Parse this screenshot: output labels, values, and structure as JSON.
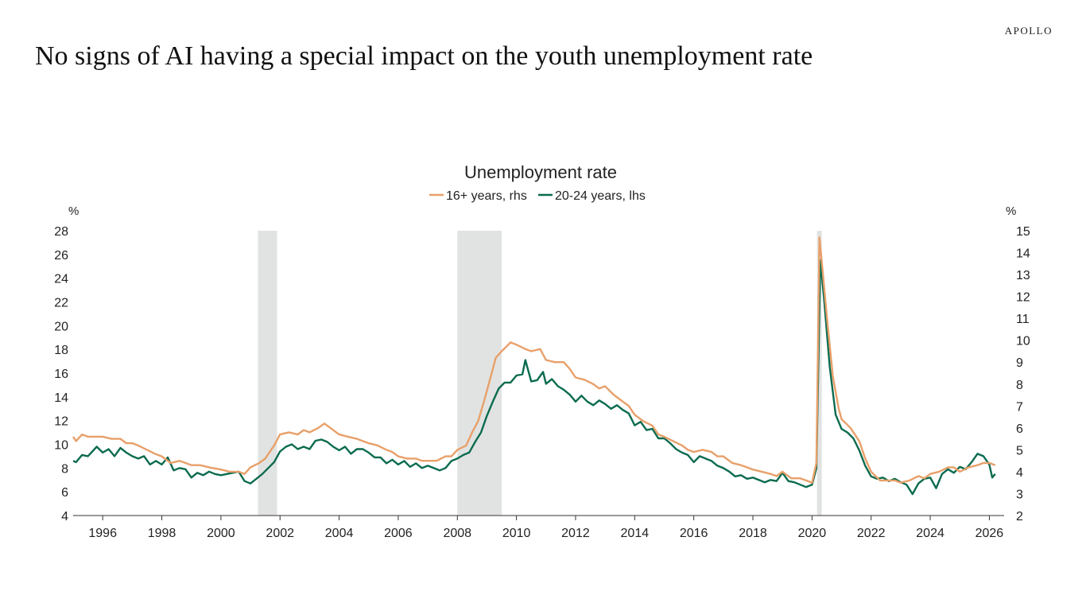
{
  "header": {
    "brand": "APOLLO",
    "headline": "No signs of AI having a special impact on the youth unemployment rate"
  },
  "chart_data": {
    "type": "line",
    "title": "Unemployment rate",
    "left_axis": {
      "unit": "%",
      "ylim": [
        4,
        28
      ],
      "ticks": [
        4,
        6,
        8,
        10,
        12,
        14,
        16,
        18,
        20,
        22,
        24,
        26,
        28
      ]
    },
    "right_axis": {
      "unit": "%",
      "ylim": [
        2,
        15
      ],
      "ticks": [
        2,
        3,
        4,
        5,
        6,
        7,
        8,
        9,
        10,
        11,
        12,
        13,
        14,
        15
      ]
    },
    "x_axis": {
      "xlim": [
        1995.0,
        2026.5
      ],
      "ticks": [
        1996,
        1998,
        2000,
        2002,
        2004,
        2006,
        2008,
        2010,
        2012,
        2014,
        2016,
        2018,
        2020,
        2022,
        2024,
        2026
      ]
    },
    "legend_position": "top",
    "grid": false,
    "recessions": [
      {
        "start": 2001.25,
        "end": 2001.9
      },
      {
        "start": 2008.0,
        "end": 2009.5
      },
      {
        "start": 2020.17,
        "end": 2020.33
      }
    ],
    "series": [
      {
        "name": "16+ years, rhs",
        "axis": "right",
        "color": "#E8A06A",
        "points": [
          [
            1995.0,
            5.6
          ],
          [
            1995.1,
            5.4
          ],
          [
            1995.3,
            5.7
          ],
          [
            1995.5,
            5.6
          ],
          [
            1995.8,
            5.6
          ],
          [
            1996.0,
            5.6
          ],
          [
            1996.3,
            5.5
          ],
          [
            1996.6,
            5.5
          ],
          [
            1996.8,
            5.3
          ],
          [
            1997.0,
            5.3
          ],
          [
            1997.2,
            5.2
          ],
          [
            1997.5,
            5.0
          ],
          [
            1997.8,
            4.8
          ],
          [
            1998.0,
            4.7
          ],
          [
            1998.3,
            4.4
          ],
          [
            1998.6,
            4.5
          ],
          [
            1998.8,
            4.4
          ],
          [
            1999.0,
            4.3
          ],
          [
            1999.3,
            4.3
          ],
          [
            1999.6,
            4.2
          ],
          [
            2000.0,
            4.1
          ],
          [
            2000.3,
            4.0
          ],
          [
            2000.6,
            4.0
          ],
          [
            2000.8,
            3.9
          ],
          [
            2001.0,
            4.2
          ],
          [
            2001.3,
            4.4
          ],
          [
            2001.5,
            4.6
          ],
          [
            2001.8,
            5.2
          ],
          [
            2002.0,
            5.7
          ],
          [
            2002.3,
            5.8
          ],
          [
            2002.6,
            5.7
          ],
          [
            2002.8,
            5.9
          ],
          [
            2003.0,
            5.8
          ],
          [
            2003.3,
            6.0
          ],
          [
            2003.5,
            6.2
          ],
          [
            2003.8,
            5.9
          ],
          [
            2004.0,
            5.7
          ],
          [
            2004.3,
            5.6
          ],
          [
            2004.6,
            5.5
          ],
          [
            2004.8,
            5.4
          ],
          [
            2005.0,
            5.3
          ],
          [
            2005.3,
            5.2
          ],
          [
            2005.6,
            5.0
          ],
          [
            2005.8,
            4.9
          ],
          [
            2006.0,
            4.7
          ],
          [
            2006.3,
            4.6
          ],
          [
            2006.6,
            4.6
          ],
          [
            2006.8,
            4.5
          ],
          [
            2007.0,
            4.5
          ],
          [
            2007.3,
            4.5
          ],
          [
            2007.6,
            4.7
          ],
          [
            2007.8,
            4.7
          ],
          [
            2008.0,
            5.0
          ],
          [
            2008.3,
            5.2
          ],
          [
            2008.5,
            5.8
          ],
          [
            2008.7,
            6.3
          ],
          [
            2008.9,
            7.2
          ],
          [
            2009.1,
            8.2
          ],
          [
            2009.3,
            9.2
          ],
          [
            2009.5,
            9.5
          ],
          [
            2009.8,
            9.9
          ],
          [
            2010.0,
            9.8
          ],
          [
            2010.3,
            9.6
          ],
          [
            2010.5,
            9.5
          ],
          [
            2010.8,
            9.6
          ],
          [
            2011.0,
            9.1
          ],
          [
            2011.3,
            9.0
          ],
          [
            2011.6,
            9.0
          ],
          [
            2011.8,
            8.7
          ],
          [
            2012.0,
            8.3
          ],
          [
            2012.3,
            8.2
          ],
          [
            2012.6,
            8.0
          ],
          [
            2012.8,
            7.8
          ],
          [
            2013.0,
            7.9
          ],
          [
            2013.3,
            7.5
          ],
          [
            2013.6,
            7.2
          ],
          [
            2013.8,
            7.0
          ],
          [
            2014.0,
            6.6
          ],
          [
            2014.3,
            6.3
          ],
          [
            2014.6,
            6.1
          ],
          [
            2014.8,
            5.7
          ],
          [
            2015.0,
            5.6
          ],
          [
            2015.3,
            5.4
          ],
          [
            2015.6,
            5.2
          ],
          [
            2015.8,
            5.0
          ],
          [
            2016.0,
            4.9
          ],
          [
            2016.3,
            5.0
          ],
          [
            2016.6,
            4.9
          ],
          [
            2016.8,
            4.7
          ],
          [
            2017.0,
            4.7
          ],
          [
            2017.3,
            4.4
          ],
          [
            2017.6,
            4.3
          ],
          [
            2017.8,
            4.2
          ],
          [
            2018.0,
            4.1
          ],
          [
            2018.3,
            4.0
          ],
          [
            2018.6,
            3.9
          ],
          [
            2018.8,
            3.8
          ],
          [
            2019.0,
            4.0
          ],
          [
            2019.3,
            3.7
          ],
          [
            2019.6,
            3.7
          ],
          [
            2019.8,
            3.6
          ],
          [
            2020.0,
            3.5
          ],
          [
            2020.15,
            4.4
          ],
          [
            2020.25,
            14.7
          ],
          [
            2020.35,
            13.3
          ],
          [
            2020.5,
            11.1
          ],
          [
            2020.7,
            8.4
          ],
          [
            2020.9,
            6.9
          ],
          [
            2021.0,
            6.4
          ],
          [
            2021.3,
            6.0
          ],
          [
            2021.6,
            5.4
          ],
          [
            2021.8,
            4.6
          ],
          [
            2022.0,
            4.0
          ],
          [
            2022.3,
            3.6
          ],
          [
            2022.6,
            3.6
          ],
          [
            2022.8,
            3.6
          ],
          [
            2023.0,
            3.5
          ],
          [
            2023.3,
            3.6
          ],
          [
            2023.6,
            3.8
          ],
          [
            2023.8,
            3.7
          ],
          [
            2024.0,
            3.9
          ],
          [
            2024.3,
            4.0
          ],
          [
            2024.6,
            4.2
          ],
          [
            2024.8,
            4.2
          ],
          [
            2025.0,
            4.0
          ],
          [
            2025.3,
            4.2
          ],
          [
            2025.6,
            4.3
          ],
          [
            2025.8,
            4.4
          ],
          [
            2026.0,
            4.4
          ],
          [
            2026.2,
            4.3
          ]
        ]
      },
      {
        "name": "20-24 years, lhs",
        "axis": "left",
        "color": "#0B6B4F",
        "points": [
          [
            1995.0,
            8.6
          ],
          [
            1995.1,
            8.5
          ],
          [
            1995.3,
            9.1
          ],
          [
            1995.5,
            9.0
          ],
          [
            1995.8,
            9.8
          ],
          [
            1996.0,
            9.3
          ],
          [
            1996.2,
            9.6
          ],
          [
            1996.4,
            9.0
          ],
          [
            1996.6,
            9.7
          ],
          [
            1996.8,
            9.3
          ],
          [
            1997.0,
            9.0
          ],
          [
            1997.2,
            8.8
          ],
          [
            1997.4,
            9.0
          ],
          [
            1997.6,
            8.3
          ],
          [
            1997.8,
            8.6
          ],
          [
            1998.0,
            8.3
          ],
          [
            1998.2,
            8.9
          ],
          [
            1998.4,
            7.8
          ],
          [
            1998.6,
            8.0
          ],
          [
            1998.8,
            7.9
          ],
          [
            1999.0,
            7.2
          ],
          [
            1999.2,
            7.6
          ],
          [
            1999.4,
            7.4
          ],
          [
            1999.6,
            7.7
          ],
          [
            1999.8,
            7.5
          ],
          [
            2000.0,
            7.4
          ],
          [
            2000.2,
            7.5
          ],
          [
            2000.4,
            7.6
          ],
          [
            2000.6,
            7.7
          ],
          [
            2000.8,
            6.9
          ],
          [
            2001.0,
            6.7
          ],
          [
            2001.2,
            7.1
          ],
          [
            2001.4,
            7.5
          ],
          [
            2001.6,
            8.0
          ],
          [
            2001.8,
            8.5
          ],
          [
            2002.0,
            9.4
          ],
          [
            2002.2,
            9.8
          ],
          [
            2002.4,
            10.0
          ],
          [
            2002.6,
            9.6
          ],
          [
            2002.8,
            9.8
          ],
          [
            2003.0,
            9.6
          ],
          [
            2003.2,
            10.3
          ],
          [
            2003.4,
            10.4
          ],
          [
            2003.6,
            10.2
          ],
          [
            2003.8,
            9.8
          ],
          [
            2004.0,
            9.5
          ],
          [
            2004.2,
            9.8
          ],
          [
            2004.4,
            9.2
          ],
          [
            2004.6,
            9.6
          ],
          [
            2004.8,
            9.6
          ],
          [
            2005.0,
            9.3
          ],
          [
            2005.2,
            8.9
          ],
          [
            2005.4,
            8.9
          ],
          [
            2005.6,
            8.4
          ],
          [
            2005.8,
            8.7
          ],
          [
            2006.0,
            8.3
          ],
          [
            2006.2,
            8.6
          ],
          [
            2006.4,
            8.1
          ],
          [
            2006.6,
            8.4
          ],
          [
            2006.8,
            8.0
          ],
          [
            2007.0,
            8.2
          ],
          [
            2007.2,
            8.0
          ],
          [
            2007.4,
            7.8
          ],
          [
            2007.6,
            8.0
          ],
          [
            2007.8,
            8.6
          ],
          [
            2008.0,
            8.8
          ],
          [
            2008.2,
            9.1
          ],
          [
            2008.4,
            9.3
          ],
          [
            2008.6,
            10.2
          ],
          [
            2008.8,
            11.0
          ],
          [
            2009.0,
            12.4
          ],
          [
            2009.2,
            13.6
          ],
          [
            2009.4,
            14.7
          ],
          [
            2009.6,
            15.2
          ],
          [
            2009.8,
            15.2
          ],
          [
            2010.0,
            15.8
          ],
          [
            2010.2,
            15.9
          ],
          [
            2010.3,
            17.1
          ],
          [
            2010.5,
            15.3
          ],
          [
            2010.7,
            15.4
          ],
          [
            2010.9,
            16.1
          ],
          [
            2011.0,
            15.1
          ],
          [
            2011.2,
            15.5
          ],
          [
            2011.4,
            14.9
          ],
          [
            2011.6,
            14.6
          ],
          [
            2011.8,
            14.2
          ],
          [
            2012.0,
            13.6
          ],
          [
            2012.2,
            14.1
          ],
          [
            2012.4,
            13.6
          ],
          [
            2012.6,
            13.3
          ],
          [
            2012.8,
            13.7
          ],
          [
            2013.0,
            13.4
          ],
          [
            2013.2,
            13.0
          ],
          [
            2013.4,
            13.3
          ],
          [
            2013.6,
            12.9
          ],
          [
            2013.8,
            12.6
          ],
          [
            2014.0,
            11.6
          ],
          [
            2014.2,
            11.9
          ],
          [
            2014.4,
            11.2
          ],
          [
            2014.6,
            11.3
          ],
          [
            2014.8,
            10.5
          ],
          [
            2015.0,
            10.5
          ],
          [
            2015.2,
            10.1
          ],
          [
            2015.4,
            9.6
          ],
          [
            2015.6,
            9.3
          ],
          [
            2015.8,
            9.1
          ],
          [
            2016.0,
            8.5
          ],
          [
            2016.2,
            9.0
          ],
          [
            2016.4,
            8.8
          ],
          [
            2016.6,
            8.6
          ],
          [
            2016.8,
            8.2
          ],
          [
            2017.0,
            8.0
          ],
          [
            2017.2,
            7.7
          ],
          [
            2017.4,
            7.3
          ],
          [
            2017.6,
            7.4
          ],
          [
            2017.8,
            7.1
          ],
          [
            2018.0,
            7.2
          ],
          [
            2018.2,
            7.0
          ],
          [
            2018.4,
            6.8
          ],
          [
            2018.6,
            7.0
          ],
          [
            2018.8,
            6.9
          ],
          [
            2019.0,
            7.6
          ],
          [
            2019.2,
            6.9
          ],
          [
            2019.4,
            6.8
          ],
          [
            2019.6,
            6.6
          ],
          [
            2019.8,
            6.4
          ],
          [
            2020.0,
            6.6
          ],
          [
            2020.15,
            8.0
          ],
          [
            2020.28,
            25.5
          ],
          [
            2020.4,
            22.5
          ],
          [
            2020.6,
            16.5
          ],
          [
            2020.8,
            12.5
          ],
          [
            2021.0,
            11.3
          ],
          [
            2021.2,
            11.0
          ],
          [
            2021.4,
            10.5
          ],
          [
            2021.6,
            9.5
          ],
          [
            2021.8,
            8.2
          ],
          [
            2022.0,
            7.3
          ],
          [
            2022.2,
            7.1
          ],
          [
            2022.4,
            7.2
          ],
          [
            2022.6,
            6.9
          ],
          [
            2022.8,
            7.1
          ],
          [
            2023.0,
            6.8
          ],
          [
            2023.2,
            6.6
          ],
          [
            2023.4,
            5.8
          ],
          [
            2023.6,
            6.7
          ],
          [
            2023.8,
            7.1
          ],
          [
            2024.0,
            7.2
          ],
          [
            2024.2,
            6.3
          ],
          [
            2024.4,
            7.5
          ],
          [
            2024.6,
            7.9
          ],
          [
            2024.8,
            7.6
          ],
          [
            2025.0,
            8.1
          ],
          [
            2025.2,
            7.9
          ],
          [
            2025.4,
            8.5
          ],
          [
            2025.6,
            9.2
          ],
          [
            2025.8,
            9.0
          ],
          [
            2026.0,
            8.3
          ],
          [
            2026.1,
            7.2
          ],
          [
            2026.2,
            7.5
          ]
        ]
      }
    ]
  }
}
